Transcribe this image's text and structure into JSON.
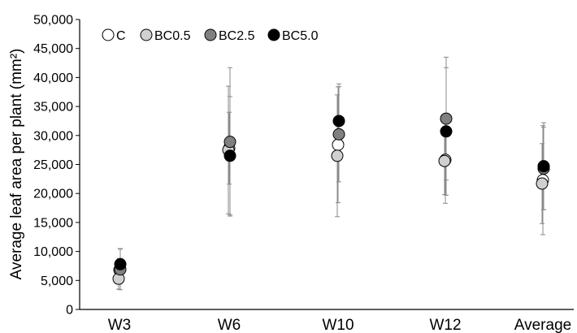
{
  "chart_data": {
    "type": "scatter",
    "categories": [
      "W3",
      "W6",
      "W10",
      "W12",
      "Average"
    ],
    "ylabel": "Average leaf area per plant (mm²)",
    "ylim": [
      0,
      50000
    ],
    "yticks": [
      "0",
      "5,000",
      "10,000",
      "15,000",
      "20,000",
      "25,000",
      "30,000",
      "35,000",
      "40,000",
      "45,000",
      "50,000"
    ],
    "grid": false,
    "legend_position": "top-left",
    "series": [
      {
        "name": "C",
        "color": "#ffffff",
        "values": [
          6800,
          27800,
          28400,
          25800,
          22300
        ],
        "errors": [
          2000,
          6200,
          10000,
          7500,
          9400
        ]
      },
      {
        "name": "BC0.5",
        "color": "#d0d0d0",
        "values": [
          5300,
          27500,
          26500,
          25600,
          21700
        ],
        "errors": [
          1800,
          11000,
          10500,
          5800,
          6900
        ]
      },
      {
        "name": "BC2.5",
        "color": "#808080",
        "values": [
          6900,
          28900,
          30200,
          32900,
          24300
        ],
        "errors": [
          3500,
          12800,
          8200,
          10600,
          7100
        ]
      },
      {
        "name": "BC5.0",
        "color": "#000000",
        "values": [
          7800,
          26500,
          32500,
          30700,
          24700
        ],
        "errors": [
          2700,
          10200,
          6400,
          11000,
          7500
        ]
      }
    ]
  }
}
